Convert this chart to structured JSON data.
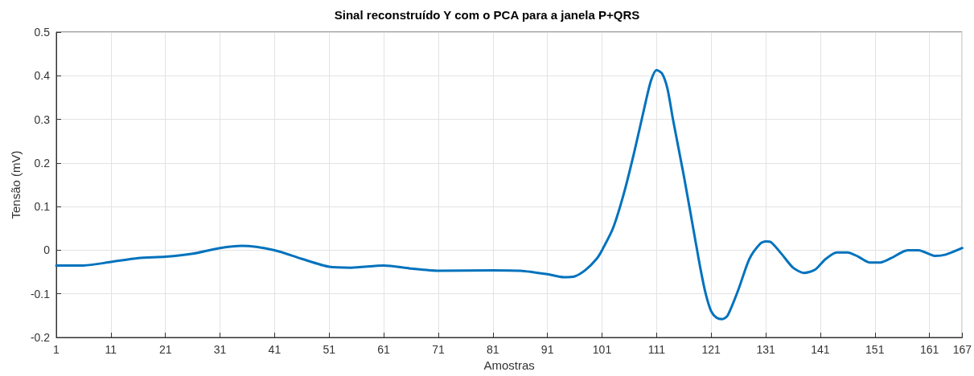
{
  "chart_data": {
    "type": "line",
    "title": "Sinal reconstruído Y com o PCA para a janela P+QRS",
    "xlabel": "Amostras",
    "ylabel": "Tensão (mV)",
    "x": [
      1,
      6,
      11,
      16,
      21,
      26,
      31,
      35,
      41,
      46,
      51,
      55,
      61,
      66,
      71,
      81,
      86,
      91,
      94,
      96,
      98,
      100,
      101,
      103,
      105,
      107,
      109,
      110,
      111,
      112,
      113,
      114,
      116,
      118,
      119,
      120,
      121,
      122,
      123,
      124,
      126,
      128,
      130,
      131,
      132,
      134,
      136,
      138,
      140,
      142,
      144,
      146,
      148,
      150,
      152,
      154,
      157,
      159,
      162,
      164,
      167
    ],
    "series": [
      {
        "color": "#0072bd",
        "values": [
          -0.035,
          -0.035,
          -0.027,
          -0.018,
          -0.015,
          -0.008,
          0.005,
          0.01,
          0.0,
          -0.02,
          -0.038,
          -0.04,
          -0.035,
          -0.042,
          -0.047,
          -0.046,
          -0.047,
          -0.055,
          -0.062,
          -0.06,
          -0.045,
          -0.02,
          0.0,
          0.05,
          0.13,
          0.23,
          0.34,
          0.39,
          0.413,
          0.405,
          0.37,
          0.3,
          0.17,
          0.03,
          -0.04,
          -0.1,
          -0.14,
          -0.155,
          -0.158,
          -0.15,
          -0.09,
          -0.02,
          0.015,
          0.02,
          0.018,
          -0.01,
          -0.04,
          -0.052,
          -0.045,
          -0.02,
          -0.005,
          -0.005,
          -0.015,
          -0.028,
          -0.028,
          -0.018,
          0.0,
          0.0,
          -0.013,
          -0.01,
          0.005
        ]
      }
    ],
    "xlim": [
      1,
      167
    ],
    "xticks": [
      1,
      11,
      21,
      31,
      41,
      51,
      61,
      71,
      81,
      91,
      101,
      111,
      121,
      131,
      141,
      151,
      161,
      167
    ],
    "ylim": [
      -0.2,
      0.5
    ],
    "yticks": [
      -0.2,
      -0.1,
      0,
      0.1,
      0.2,
      0.3,
      0.4,
      0.5
    ],
    "grid": true,
    "marker": "none",
    "line_style": "solid"
  }
}
